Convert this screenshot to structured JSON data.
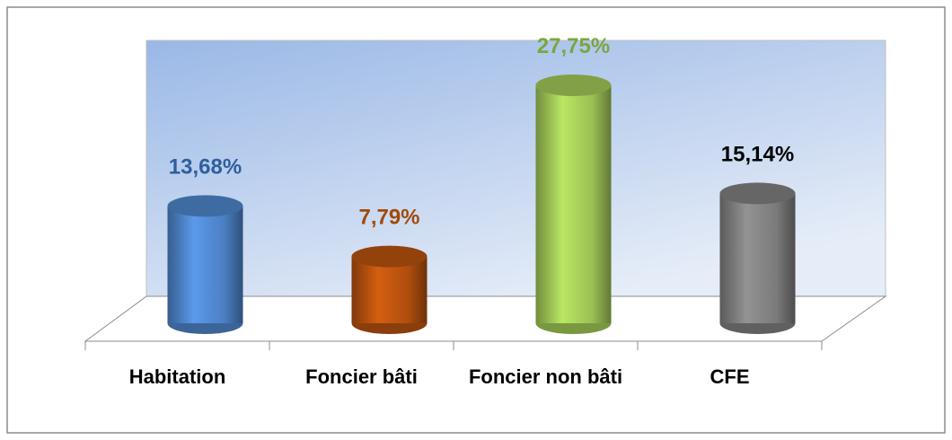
{
  "chart_data": {
    "type": "bar3d-cylinder",
    "categories": [
      "Habitation",
      "Foncier bâti",
      "Foncier non bâti",
      "CFE"
    ],
    "values": [
      13.68,
      7.79,
      27.75,
      15.14
    ],
    "value_labels": [
      "13,68%",
      "7,79%",
      "27,75%",
      "15,14%"
    ],
    "colors": [
      "#4f86cc",
      "#b8520e",
      "#a2c957",
      "#808080"
    ],
    "label_colors": [
      "#2e5f9e",
      "#a14a08",
      "#7ba640",
      "#000000"
    ]
  }
}
